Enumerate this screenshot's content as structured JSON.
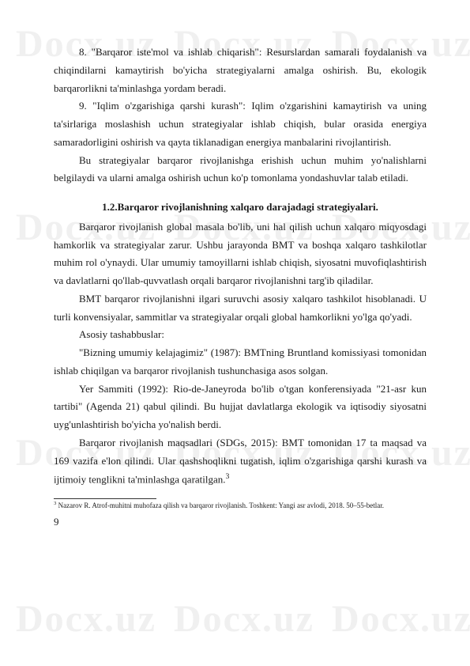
{
  "watermark": "Docx.uz",
  "paragraphs": {
    "p8": "8. \"Barqaror iste'mol va ishlab chiqarish\": Resurslardan samarali foydalanish va chiqindilarni kamaytirish bo'yicha strategiyalarni amalga oshirish. Bu, ekologik barqarorlikni ta'minlashga yordam beradi.",
    "p9": "9. \"Iqlim o'zgarishiga qarshi kurash\": Iqlim o'zgarishini kamaytirish va uning ta'sirlariga moslashish uchun strategiyalar ishlab chiqish, bular orasida energiya samaradorligini oshirish va qayta tiklanadigan energiya manbalarini rivojlantirish.",
    "pBu": "Bu strategiyalar barqaror rivojlanishga erishish uchun muhim yo'nalishlarni belgilaydi va ularni amalga oshirish uchun ko'p tomonlama yondashuvlar talab etiladi.",
    "heading": "1.2.Barqaror rivojlanishning xalqaro darajadagi strategiyalari.",
    "pBarqaror1": "Barqaror rivojlanish global masala bo'lib, uni hal qilish uchun xalqaro miqyosdagi hamkorlik va strategiyalar zarur. Ushbu jarayonda BMT va boshqa xalqaro tashkilotlar muhim rol o'ynaydi. Ular umumiy tamoyillarni ishlab chiqish, siyosatni muvofiqlashtirish va davlatlarni qo'llab-quvvatlash orqali barqaror rivojlanishni targ'ib qiladilar.",
    "pBMT": "BMT barqaror rivojlanishni ilgari suruvchi asosiy xalqaro tashkilot hisoblanadi. U turli konvensiyalar, sammitlar va strategiyalar orqali global hamkorlikni yo'lga qo'yadi.",
    "pAsosiy": "Asosiy tashabbuslar:",
    "pBizning": "\"Bizning umumiy kelajagimiz\" (1987): BMTning Bruntland komissiyasi tomonidan ishlab chiqilgan va barqaror rivojlanish tushunchasiga asos solgan.",
    "pYer": "Yer Sammiti (1992): Rio-de-Janeyroda bo'lib o'tgan konferensiyada \"21-asr kun tartibi\" (Agenda 21) qabul qilindi. Bu hujjat davlatlarga ekologik va iqtisodiy siyosatni uyg'unlashtirish bo'yicha yo'nalish berdi.",
    "pBarqaror2": "Barqaror rivojlanish maqsadlari (SDGs, 2015): BMT tomonidan 17 ta maqsad va 169 vazifa e'lon qilindi. Ular qashshoqlikni tugatish, iqlim o'zgarishiga qarshi kurash va ijtimoiy tenglikni ta'minlashga qaratilgan."
  },
  "footnote": {
    "marker": "3",
    "text": " Nazarov R. Atrof-muhitni muhofaza qilish va barqaror rivojlanish. Toshkent: Yangi asr avlodi, 2018. 50–55-betlar."
  },
  "pageNumber": "9",
  "colors": {
    "text": "#1a1a1a",
    "watermark": "#f0f0f0",
    "background": "#ffffff"
  }
}
